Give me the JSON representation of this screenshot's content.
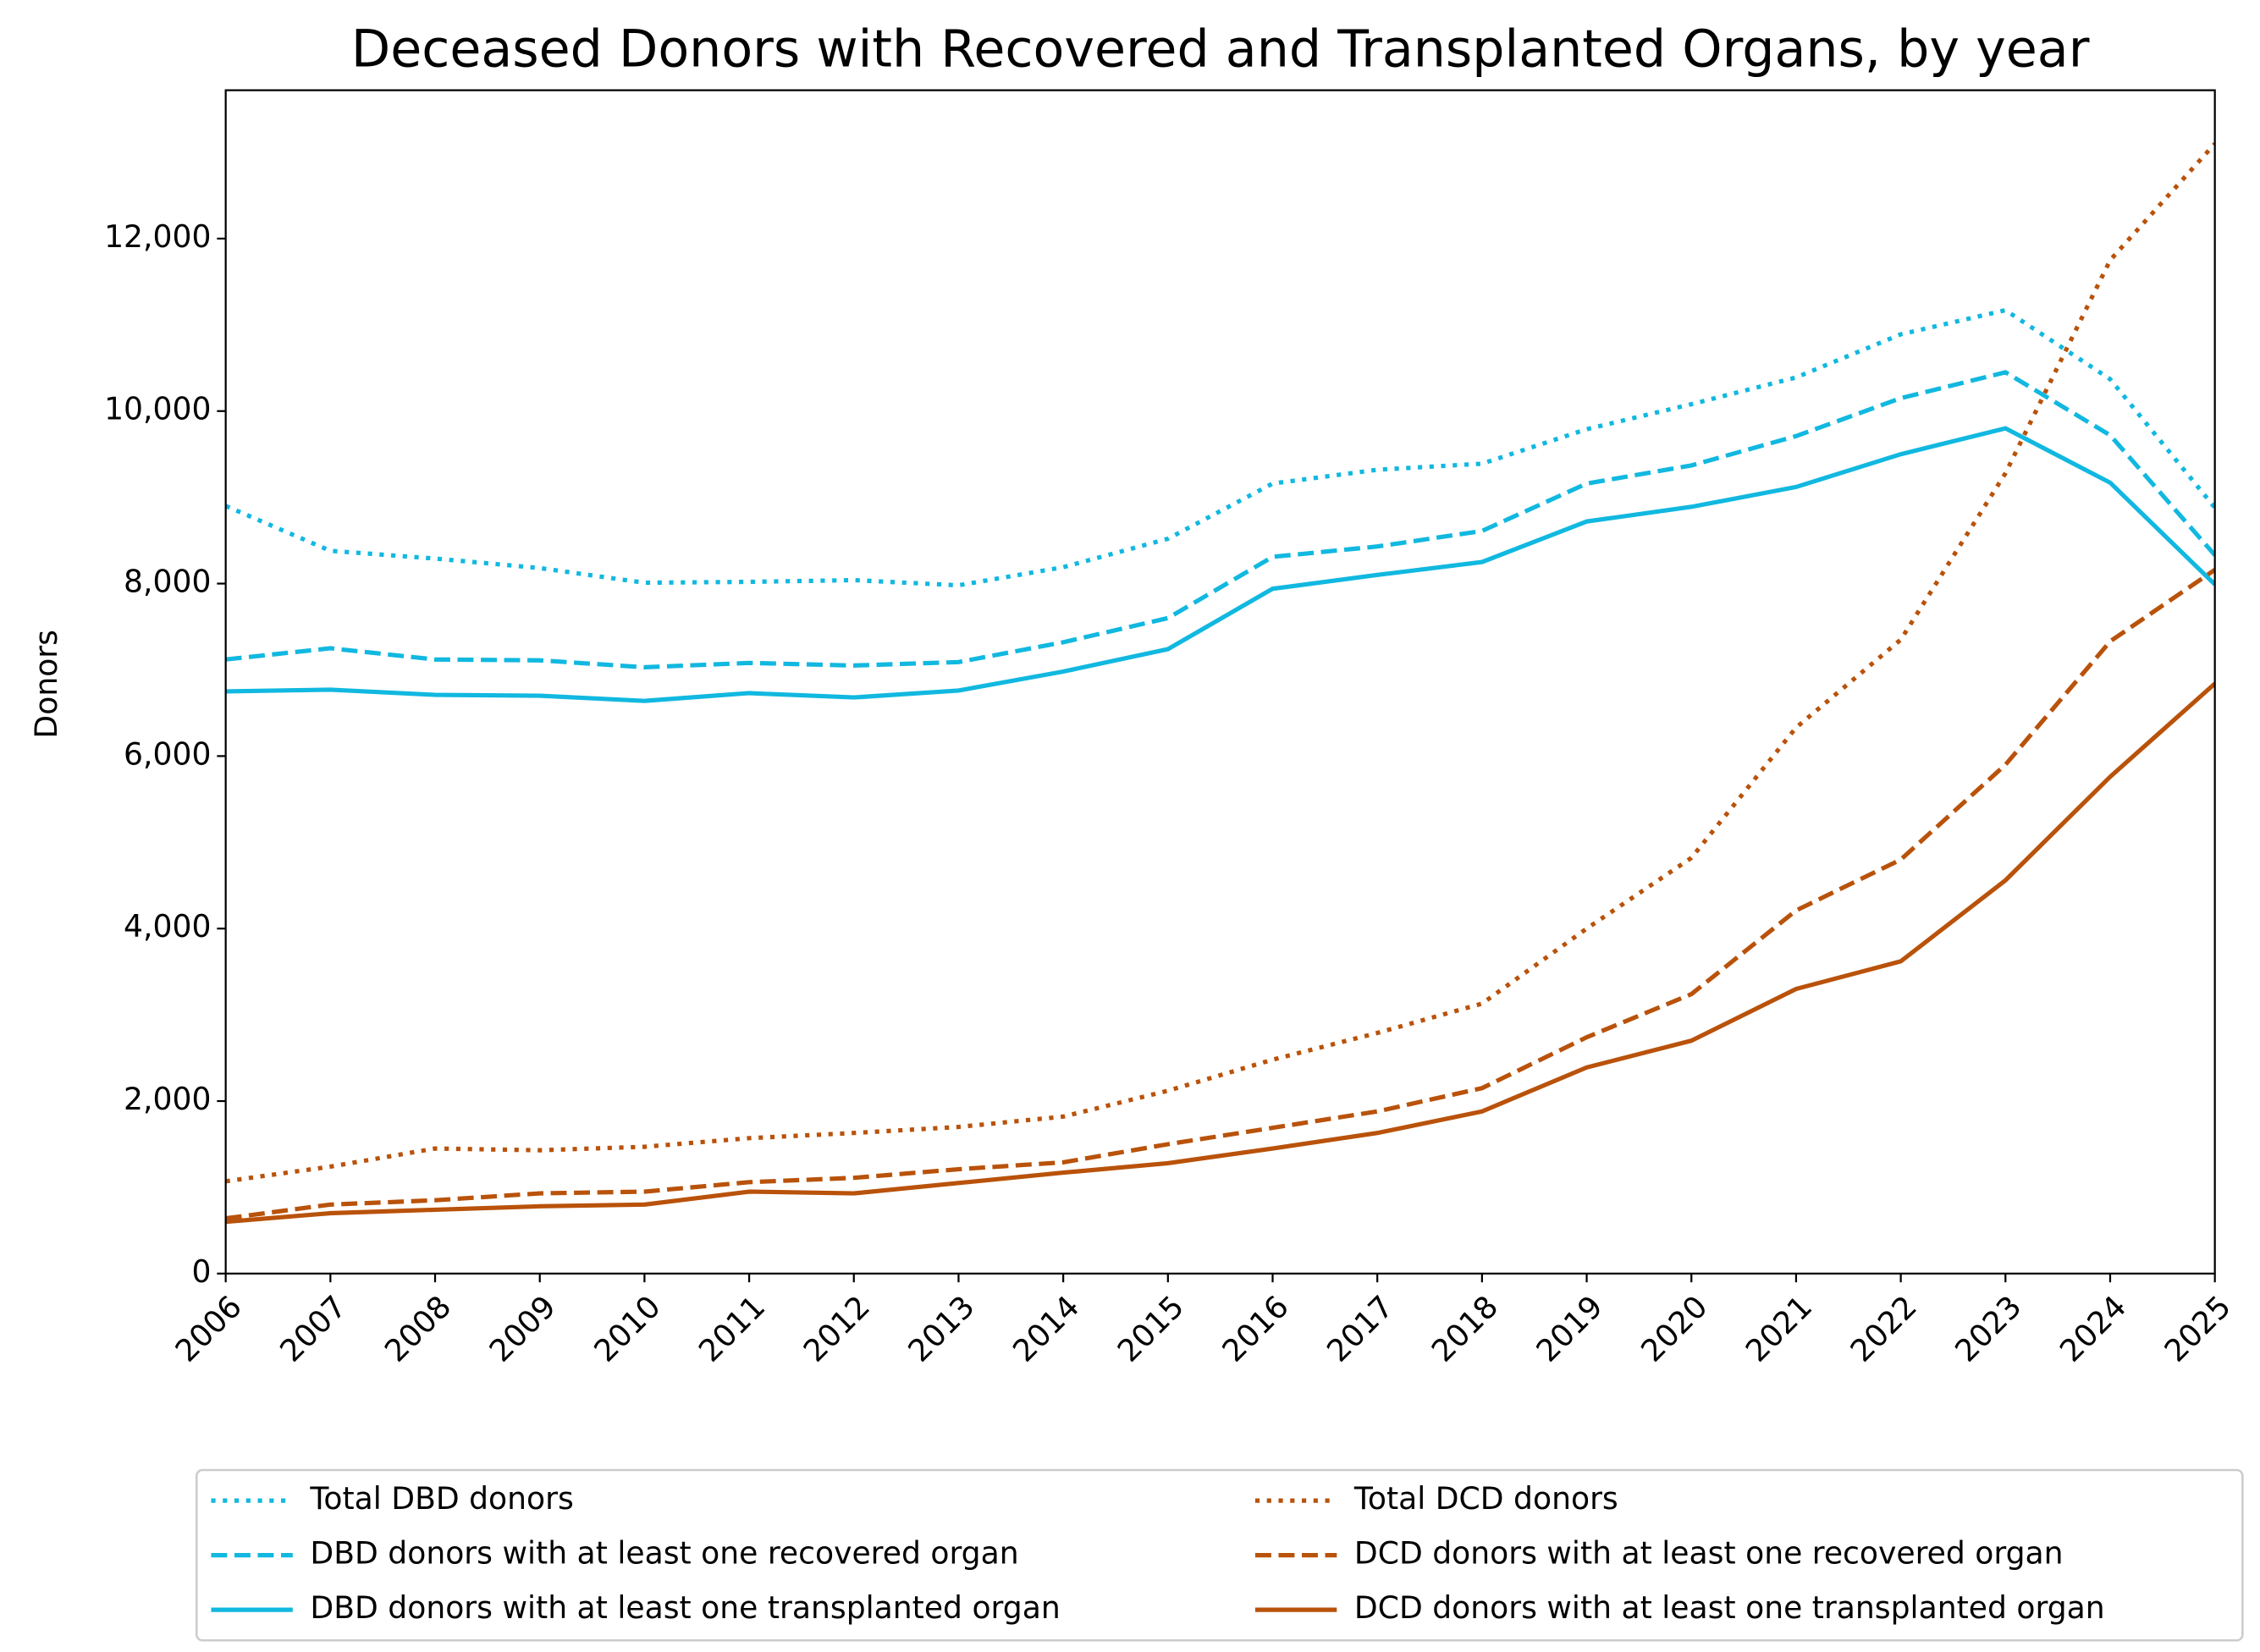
{
  "chart_data": {
    "type": "line",
    "title": "Deceased Donors with Recovered and Transplanted Organs, by year",
    "y_label": "Donors",
    "x": [
      2006,
      2007,
      2008,
      2009,
      2010,
      2011,
      2012,
      2013,
      2014,
      2015,
      2016,
      2017,
      2018,
      2019,
      2020,
      2021,
      2022,
      2023,
      2024,
      2025
    ],
    "xlim": [
      2006,
      2025
    ],
    "xticks": [
      2006,
      2007,
      2008,
      2009,
      2010,
      2011,
      2012,
      2013,
      2014,
      2015,
      2016,
      2017,
      2018,
      2019,
      2020,
      2021,
      2022,
      2023,
      2024,
      2025
    ],
    "ylim": [
      0,
      13720
    ],
    "yticks": [
      0,
      {
        "value": 2000,
        "label": "2,000"
      },
      {
        "value": 4000,
        "label": "4,000"
      },
      {
        "value": 6000,
        "label": "6,000"
      },
      {
        "value": 8000,
        "label": "8,000"
      },
      {
        "value": 10000,
        "label": "10,000"
      },
      {
        "value": 12000,
        "label": "12,000"
      }
    ],
    "grid": false,
    "legend_position": "bottom",
    "series": [
      {
        "name": "Total DBD donors",
        "color": "#11b8e0",
        "linestyle": "dotted",
        "values": [
          8900,
          8380,
          8290,
          8180,
          8010,
          8020,
          8040,
          7980,
          8190,
          8520,
          9160,
          9320,
          9390,
          9790,
          10080,
          10390,
          10890,
          11170,
          10370,
          8880
        ]
      },
      {
        "name": "DBD donors with at least one recovered organ",
        "color": "#11b8e0",
        "linestyle": "dashed",
        "values": [
          7120,
          7250,
          7120,
          7110,
          7030,
          7080,
          7050,
          7090,
          7320,
          7600,
          8310,
          8430,
          8610,
          9160,
          9370,
          9710,
          10150,
          10450,
          9720,
          8330
        ]
      },
      {
        "name": "DBD donors with at least one transplanted organ",
        "color": "#11b8e0",
        "linestyle": "solid",
        "values": [
          6750,
          6770,
          6710,
          6700,
          6640,
          6730,
          6680,
          6760,
          6980,
          7240,
          7940,
          8100,
          8250,
          8720,
          8890,
          9120,
          9500,
          9800,
          9170,
          7990
        ]
      },
      {
        "name": "Total DCD donors",
        "color": "#b9520a",
        "linestyle": "dotted",
        "values": [
          1070,
          1240,
          1450,
          1430,
          1470,
          1570,
          1630,
          1700,
          1820,
          2120,
          2480,
          2790,
          3130,
          4000,
          4820,
          6330,
          7350,
          9280,
          11750,
          13100
        ]
      },
      {
        "name": "DCD donors with at least one recovered organ",
        "color": "#b9520a",
        "linestyle": "dashed",
        "values": [
          640,
          800,
          850,
          930,
          950,
          1060,
          1110,
          1210,
          1290,
          1500,
          1690,
          1880,
          2150,
          2740,
          3240,
          4210,
          4800,
          5900,
          7330,
          8160
        ]
      },
      {
        "name": "DCD donors with at least one transplanted organ",
        "color": "#b9520a",
        "linestyle": "solid",
        "values": [
          600,
          700,
          740,
          780,
          800,
          950,
          930,
          1050,
          1170,
          1280,
          1450,
          1630,
          1880,
          2390,
          2700,
          3300,
          3620,
          4560,
          5760,
          6840
        ]
      }
    ]
  }
}
